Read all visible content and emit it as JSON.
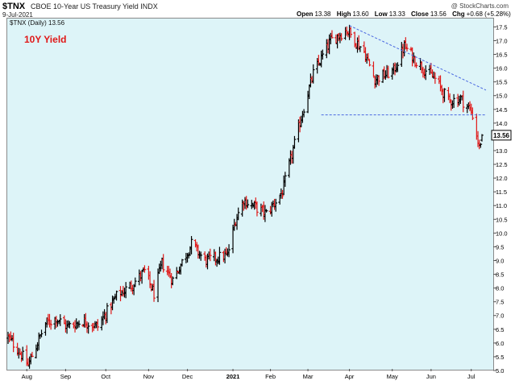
{
  "header": {
    "symbol": "$TNX",
    "description": "CBOE 10-Year US Treasury Yield INDX",
    "date": "9-Jul-2021",
    "brand": "@ StockCharts.com",
    "ohlc": {
      "open_label": "Open",
      "open": "13.38",
      "high_label": "High",
      "high": "13.60",
      "low_label": "Low",
      "low": "13.33",
      "close_label": "Close",
      "close": "13.56",
      "chg_label": "Chg",
      "chg": "+0.68 (+5.28%)"
    }
  },
  "legend": {
    "series_label": "$TNX (Daily) 13.56"
  },
  "chart_label": "10Y Yield",
  "colors": {
    "background": "#ddf4f8",
    "up": "#000000",
    "down": "#e01818",
    "trendline": "#4a68e0",
    "label": "#e01818"
  },
  "chart_data": {
    "type": "ohlc",
    "interval": "daily",
    "ylim": [
      5.0,
      17.6
    ],
    "y_ticks": [
      "5.0",
      "5.5",
      "6.0",
      "6.5",
      "7.0",
      "7.5",
      "8.0",
      "8.5",
      "9.0",
      "9.5",
      "10.0",
      "10.5",
      "11.0",
      "11.5",
      "12.0",
      "12.5",
      "13.0",
      "13.5",
      "14.0",
      "14.5",
      "15.0",
      "15.5",
      "16.0",
      "16.5",
      "17.0",
      "17.5"
    ],
    "x_labels": [
      "Aug",
      "Sep",
      "Oct",
      "Nov",
      "Dec",
      "2021",
      "Feb",
      "Mar",
      "Apr",
      "May",
      "Jun",
      "Jul"
    ],
    "x_label_dates": [
      "2020-08-03",
      "2020-09-01",
      "2020-10-01",
      "2020-11-02",
      "2020-12-01",
      "2021-01-04",
      "2021-02-01",
      "2021-03-01",
      "2021-04-01",
      "2021-05-03",
      "2021-06-01",
      "2021-07-01"
    ],
    "last_value_label": "13.56",
    "anchors": [
      [
        "2020-07-20",
        6.2
      ],
      [
        "2020-07-27",
        5.8
      ],
      [
        "2020-08-04",
        5.2
      ],
      [
        "2020-08-10",
        5.9
      ],
      [
        "2020-08-17",
        6.7
      ],
      [
        "2020-08-25",
        6.9
      ],
      [
        "2020-09-02",
        6.6
      ],
      [
        "2020-09-14",
        6.8
      ],
      [
        "2020-09-25",
        6.6
      ],
      [
        "2020-10-09",
        7.7
      ],
      [
        "2020-10-20",
        8.1
      ],
      [
        "2020-10-30",
        8.6
      ],
      [
        "2020-11-06",
        7.8
      ],
      [
        "2020-11-12",
        8.9
      ],
      [
        "2020-11-20",
        8.3
      ],
      [
        "2020-12-04",
        9.6
      ],
      [
        "2020-12-14",
        9.0
      ],
      [
        "2020-12-31",
        9.2
      ],
      [
        "2021-01-06",
        10.5
      ],
      [
        "2021-01-12",
        11.2
      ],
      [
        "2021-01-29",
        10.7
      ],
      [
        "2021-02-10",
        11.5
      ],
      [
        "2021-02-25",
        14.4
      ],
      [
        "2021-03-05",
        15.8
      ],
      [
        "2021-03-18",
        17.0
      ],
      [
        "2021-03-30",
        17.4
      ],
      [
        "2021-04-12",
        16.6
      ],
      [
        "2021-04-20",
        15.6
      ],
      [
        "2021-05-04",
        15.9
      ],
      [
        "2021-05-12",
        16.8
      ],
      [
        "2021-05-20",
        16.3
      ],
      [
        "2021-06-04",
        15.6
      ],
      [
        "2021-06-14",
        14.8
      ],
      [
        "2021-06-23",
        14.9
      ],
      [
        "2021-06-30",
        14.5
      ],
      [
        "2021-07-02",
        14.3
      ],
      [
        "2021-07-07",
        13.1
      ],
      [
        "2021-07-09",
        13.56
      ]
    ],
    "annotations": {
      "resistance_trendline": {
        "from": [
          "2021-04-01",
          17.55
        ],
        "to": [
          "2021-07-12",
          15.2
        ]
      },
      "support_line": {
        "from": [
          "2021-03-11",
          14.3
        ],
        "to": [
          "2021-07-12",
          14.3
        ]
      }
    }
  }
}
